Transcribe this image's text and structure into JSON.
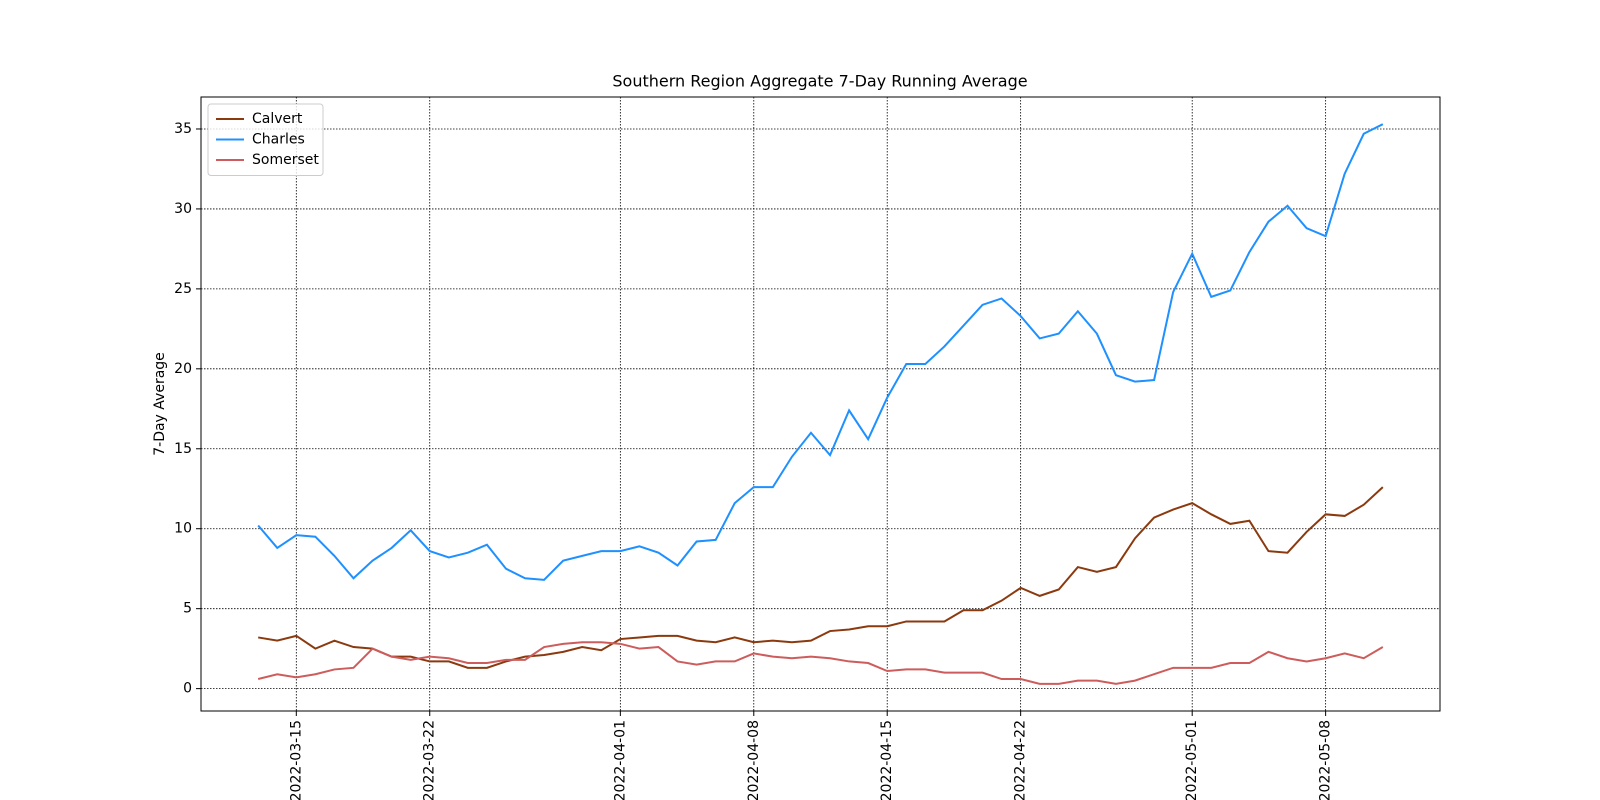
{
  "chart_data": {
    "type": "line",
    "title": "Southern Region Aggregate 7-Day Running Average",
    "y_label": "7-Day Average",
    "x": [
      "2022-03-13",
      "2022-03-14",
      "2022-03-15",
      "2022-03-16",
      "2022-03-17",
      "2022-03-18",
      "2022-03-19",
      "2022-03-20",
      "2022-03-21",
      "2022-03-22",
      "2022-03-23",
      "2022-03-24",
      "2022-03-25",
      "2022-03-26",
      "2022-03-27",
      "2022-03-28",
      "2022-03-29",
      "2022-03-30",
      "2022-03-31",
      "2022-04-01",
      "2022-04-02",
      "2022-04-03",
      "2022-04-04",
      "2022-04-05",
      "2022-04-06",
      "2022-04-07",
      "2022-04-08",
      "2022-04-09",
      "2022-04-10",
      "2022-04-11",
      "2022-04-12",
      "2022-04-13",
      "2022-04-14",
      "2022-04-15",
      "2022-04-16",
      "2022-04-17",
      "2022-04-18",
      "2022-04-19",
      "2022-04-20",
      "2022-04-21",
      "2022-04-22",
      "2022-04-23",
      "2022-04-24",
      "2022-04-25",
      "2022-04-26",
      "2022-04-27",
      "2022-04-28",
      "2022-04-29",
      "2022-04-30",
      "2022-05-01",
      "2022-05-02",
      "2022-05-03",
      "2022-05-04",
      "2022-05-05",
      "2022-05-06",
      "2022-05-07",
      "2022-05-08",
      "2022-05-09",
      "2022-05-10",
      "2022-05-11"
    ],
    "series": [
      {
        "name": "Calvert",
        "color": "#8b3a0f",
        "values": [
          3.2,
          3.0,
          3.3,
          2.5,
          3.0,
          2.6,
          2.5,
          2.0,
          2.0,
          1.7,
          1.7,
          1.3,
          1.3,
          1.7,
          2.0,
          2.1,
          2.3,
          2.6,
          2.4,
          3.1,
          3.2,
          3.3,
          3.3,
          3.0,
          2.9,
          3.2,
          2.9,
          3.0,
          2.9,
          3.0,
          3.6,
          3.7,
          3.9,
          3.9,
          4.2,
          4.2,
          4.2,
          4.9,
          4.9,
          5.5,
          6.3,
          5.8,
          6.2,
          7.6,
          7.3,
          7.6,
          9.4,
          10.7,
          11.2,
          11.6,
          10.9,
          10.3,
          10.5,
          8.6,
          8.5,
          9.8,
          10.9,
          10.8,
          11.5,
          12.6
        ]
      },
      {
        "name": "Charles",
        "color": "#1e90ff",
        "values": [
          10.2,
          8.8,
          9.6,
          9.5,
          8.3,
          6.9,
          8.0,
          8.8,
          9.9,
          8.6,
          8.2,
          8.5,
          9.0,
          7.5,
          6.9,
          6.8,
          8.0,
          8.3,
          8.6,
          8.6,
          8.9,
          8.5,
          7.7,
          9.2,
          9.3,
          11.6,
          12.6,
          12.6,
          14.5,
          16.0,
          14.6,
          17.4,
          15.6,
          18.2,
          20.3,
          20.3,
          21.4,
          22.7,
          24.0,
          24.4,
          23.3,
          21.9,
          22.2,
          23.6,
          22.2,
          19.6,
          19.2,
          19.3,
          24.8,
          27.2,
          24.5,
          24.9,
          27.3,
          29.2,
          30.2,
          28.8,
          28.3,
          32.2,
          34.7,
          35.3
        ]
      },
      {
        "name": "Somerset",
        "color": "#cd5c5c",
        "values": [
          0.6,
          0.9,
          0.7,
          0.9,
          1.2,
          1.3,
          2.5,
          2.0,
          1.8,
          2.0,
          1.9,
          1.6,
          1.6,
          1.8,
          1.8,
          2.6,
          2.8,
          2.9,
          2.9,
          2.8,
          2.5,
          2.6,
          1.7,
          1.5,
          1.7,
          1.7,
          2.2,
          2.0,
          1.9,
          2.0,
          1.9,
          1.7,
          1.6,
          1.1,
          1.2,
          1.2,
          1.0,
          1.0,
          1.0,
          0.6,
          0.6,
          0.3,
          0.3,
          0.5,
          0.5,
          0.3,
          0.5,
          0.9,
          1.3,
          1.3,
          1.3,
          1.6,
          1.6,
          2.3,
          1.9,
          1.7,
          1.9,
          2.2,
          1.9,
          2.6
        ]
      }
    ],
    "xlim": [
      "2022-03-10",
      "2022-05-14"
    ],
    "xticks": [
      "2022-03-15",
      "2022-03-22",
      "2022-04-01",
      "2022-04-08",
      "2022-04-15",
      "2022-04-22",
      "2022-05-01",
      "2022-05-08"
    ],
    "ylim": [
      -1.4,
      37.0
    ],
    "yticks": [
      0,
      5,
      10,
      15,
      20,
      25,
      30,
      35
    ],
    "grid": true,
    "legend": "upper-left"
  }
}
